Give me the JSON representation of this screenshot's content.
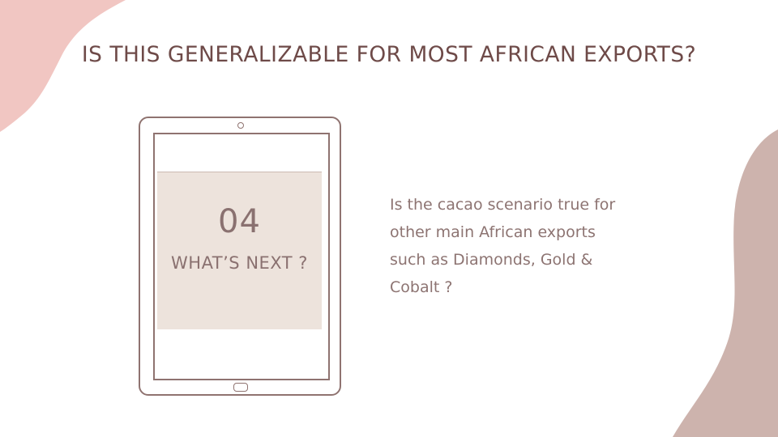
{
  "slide": {
    "title": "IS THIS GENERALIZABLE FOR MOST AFRICAN EXPORTS?",
    "card": {
      "number": "04",
      "subtitle": "WHAT’S NEXT ?"
    },
    "body": "Is the cacao scenario true for\nother main African exports\nsuch as Diamonds, Gold &\nCobalt ?"
  },
  "colors": {
    "title": "#6e4a48",
    "body_text": "#8d7472",
    "pink_blob": "#f1c6c2",
    "taupe_blob": "#cdb3ad",
    "card_background": "#ede3dc",
    "tablet_outline": "#8f7370"
  },
  "icons": {
    "device": "tablet-icon"
  }
}
